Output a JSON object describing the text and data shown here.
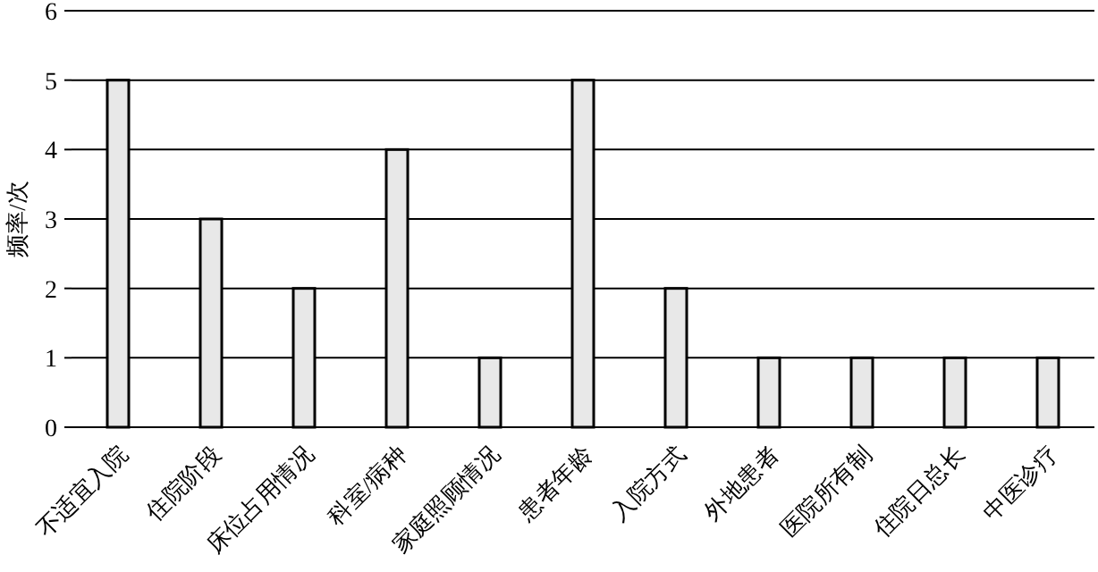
{
  "chart_data": {
    "type": "bar",
    "ylabel": "频率/次",
    "categories": [
      "不适宜入院",
      "住院阶段",
      "床位占用情况",
      "科室/病种",
      "家庭照顾情况",
      "患者年龄",
      "入院方式",
      "外地患者",
      "医院所有制",
      "住院日总长",
      "中医诊疗"
    ],
    "values": [
      5,
      3,
      2,
      4,
      1,
      5,
      2,
      1,
      1,
      1,
      1
    ],
    "color": "#e8e8e8",
    "ylim": [
      0,
      6
    ],
    "yticks": [
      0,
      1,
      2,
      3,
      4,
      5,
      6
    ],
    "grid": "y"
  }
}
